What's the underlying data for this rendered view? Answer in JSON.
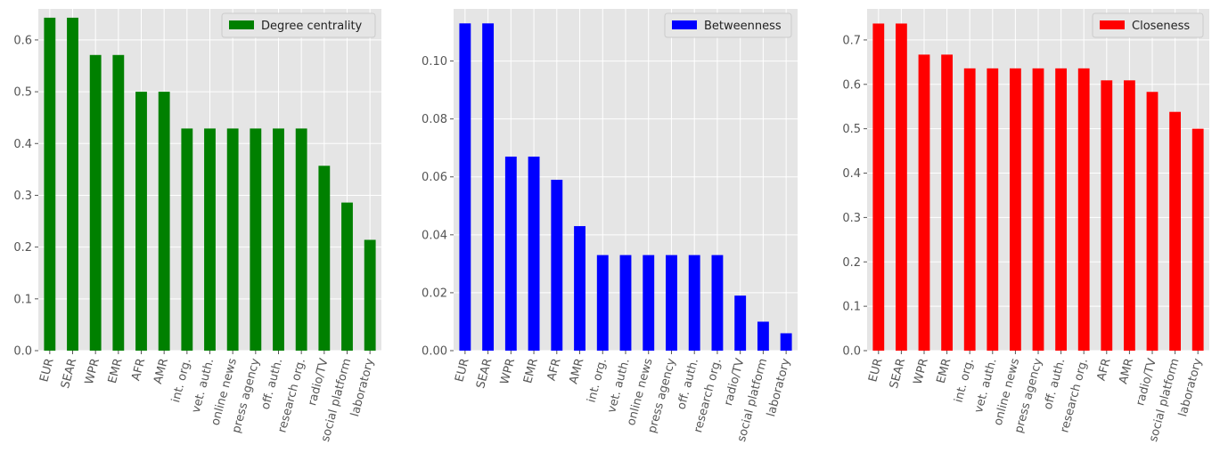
{
  "chart_data": [
    {
      "type": "bar",
      "categories": [
        "EUR",
        "SEAR",
        "WPR",
        "EMR",
        "AFR",
        "AMR",
        "int. org.",
        "vet. auth.",
        "online news",
        "press agency",
        "off. auth.",
        "research org.",
        "radio/TV",
        "social platform",
        "laboratory"
      ],
      "series": [
        {
          "name": "Degree centrality",
          "values": [
            0.643,
            0.643,
            0.571,
            0.571,
            0.5,
            0.5,
            0.429,
            0.429,
            0.429,
            0.429,
            0.429,
            0.429,
            0.357,
            0.286,
            0.214
          ],
          "color": "#008000"
        }
      ],
      "ylim": [
        0,
        0.66
      ],
      "yticks": [
        0.0,
        0.1,
        0.2,
        0.3,
        0.4,
        0.5,
        0.6
      ],
      "ytick_labels": [
        "0.0",
        "0.1",
        "0.2",
        "0.3",
        "0.4",
        "0.5",
        "0.6"
      ],
      "grid": true,
      "legend": "top-right",
      "style": "ggplot"
    },
    {
      "type": "bar",
      "categories": [
        "EUR",
        "SEAR",
        "WPR",
        "EMR",
        "AFR",
        "AMR",
        "int. org.",
        "vet. auth.",
        "online news",
        "press agency",
        "off. auth.",
        "research org.",
        "radio/TV",
        "social platform",
        "laboratory"
      ],
      "series": [
        {
          "name": "Betweenness",
          "values": [
            0.113,
            0.113,
            0.067,
            0.067,
            0.059,
            0.043,
            0.033,
            0.033,
            0.033,
            0.033,
            0.033,
            0.033,
            0.019,
            0.01,
            0.006
          ],
          "color": "#0000ff"
        }
      ],
      "ylim": [
        0,
        0.118
      ],
      "yticks": [
        0.0,
        0.02,
        0.04,
        0.06,
        0.08,
        0.1
      ],
      "ytick_labels": [
        "0.00",
        "0.02",
        "0.04",
        "0.06",
        "0.08",
        "0.10"
      ],
      "grid": true,
      "legend": "top-right",
      "style": "ggplot"
    },
    {
      "type": "bar",
      "categories": [
        "EUR",
        "SEAR",
        "WPR",
        "EMR",
        "int. org.",
        "vet. auth.",
        "online news",
        "press agency",
        "off. auth.",
        "research org.",
        "AFR",
        "AMR",
        "radio/TV",
        "social platform",
        "laboratory"
      ],
      "series": [
        {
          "name": "Closeness",
          "values": [
            0.737,
            0.737,
            0.667,
            0.667,
            0.636,
            0.636,
            0.636,
            0.636,
            0.636,
            0.636,
            0.609,
            0.609,
            0.583,
            0.538,
            0.5
          ],
          "color": "#ff0000"
        }
      ],
      "ylim": [
        0,
        0.77
      ],
      "yticks": [
        0.0,
        0.1,
        0.2,
        0.3,
        0.4,
        0.5,
        0.6,
        0.7
      ],
      "ytick_labels": [
        "0.0",
        "0.1",
        "0.2",
        "0.3",
        "0.4",
        "0.5",
        "0.6",
        "0.7"
      ],
      "grid": true,
      "legend": "top-right",
      "style": "ggplot"
    }
  ]
}
